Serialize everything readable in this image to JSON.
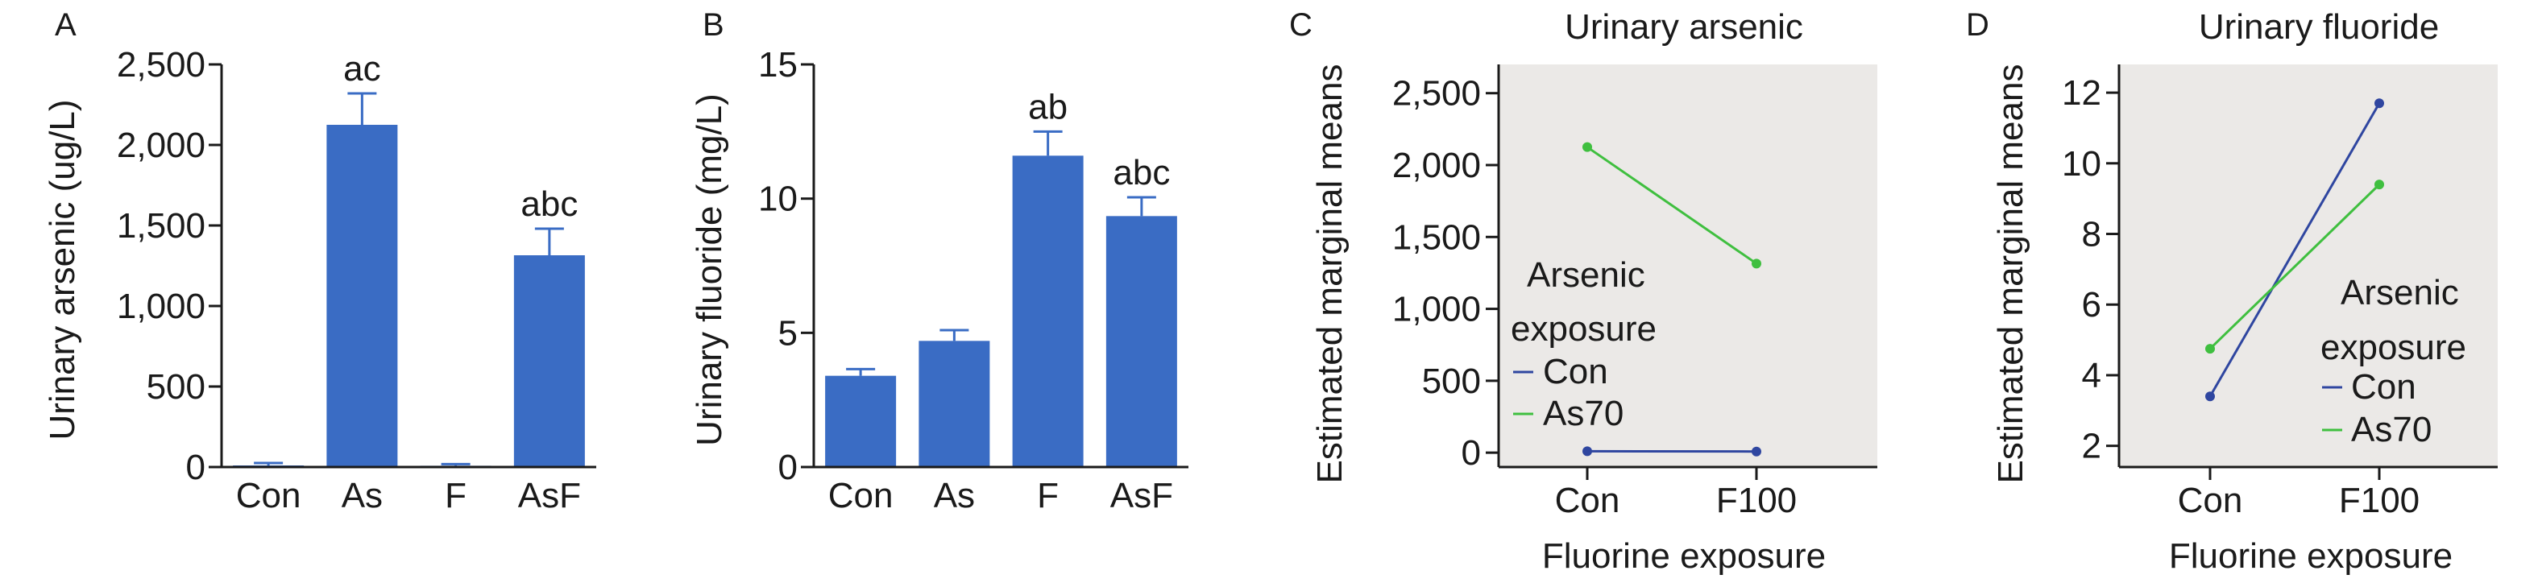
{
  "chart_data": [
    {
      "panel_letter": "A",
      "type": "bar",
      "ylabel": "Urinary arsenic (ug/L)",
      "xlabel": "",
      "categories": [
        "Con",
        "As",
        "F",
        "AsF"
      ],
      "values": [
        10,
        2125,
        8,
        1315
      ],
      "errors": [
        15,
        195,
        10,
        165
      ],
      "annotations": [
        "",
        "ac",
        "",
        "abc"
      ],
      "ylim": [
        0,
        2500
      ],
      "yticks": [
        0,
        500,
        1000,
        1500,
        2000,
        2500
      ],
      "ytick_labels": [
        "0",
        "500",
        "1,000",
        "1,500",
        "2,000",
        "2,500"
      ],
      "bar_color": "#3a6cc4"
    },
    {
      "panel_letter": "B",
      "type": "bar",
      "ylabel": "Urinary fluoride (mg/L)",
      "xlabel": "",
      "categories": [
        "Con",
        "As",
        "F",
        "AsF"
      ],
      "values": [
        3.4,
        4.7,
        11.6,
        9.35
      ],
      "errors": [
        0.25,
        0.4,
        0.9,
        0.7
      ],
      "annotations": [
        "",
        "",
        "ab",
        "abc"
      ],
      "ylim": [
        0,
        15
      ],
      "yticks": [
        0,
        5,
        10,
        15
      ],
      "ytick_labels": [
        "0",
        "5",
        "10",
        "15"
      ],
      "bar_color": "#3a6cc4"
    },
    {
      "panel_letter": "C",
      "type": "line",
      "title": "Urinary arsenic",
      "ylabel": "Estimated marginal means",
      "xlabel": "Fluorine exposure",
      "categories": [
        "Con",
        "F100"
      ],
      "ylim": [
        -100,
        2700
      ],
      "yticks": [
        0,
        500,
        1000,
        1500,
        2000,
        2500
      ],
      "ytick_labels": [
        "0",
        "500",
        "1,000",
        "1,500",
        "2,000",
        "2,500"
      ],
      "legend_title": [
        "Arsenic",
        "exposure"
      ],
      "legend_position": "left",
      "background": "#ebe9e7",
      "series": [
        {
          "name": "Con",
          "values": [
            10,
            8
          ],
          "color": "#2f46a0"
        },
        {
          "name": "As70",
          "values": [
            2125,
            1315
          ],
          "color": "#3fbf3f"
        }
      ]
    },
    {
      "panel_letter": "D",
      "type": "line",
      "title": "Urinary fluoride",
      "ylabel": "Estimated marginal means",
      "xlabel": "Fluorine exposure",
      "categories": [
        "Con",
        "F100"
      ],
      "ylim": [
        1.4,
        12.8
      ],
      "yticks": [
        2,
        4,
        6,
        8,
        10,
        12
      ],
      "ytick_labels": [
        "2",
        "4",
        "6",
        "8",
        "10",
        "12"
      ],
      "legend_title": [
        "Arsenic",
        "exposure"
      ],
      "legend_position": "right",
      "background": "#ebe9e7",
      "series": [
        {
          "name": "Con",
          "values": [
            3.4,
            11.7
          ],
          "color": "#2f46a0"
        },
        {
          "name": "As70",
          "values": [
            4.75,
            9.4
          ],
          "color": "#3fbf3f"
        }
      ]
    }
  ]
}
